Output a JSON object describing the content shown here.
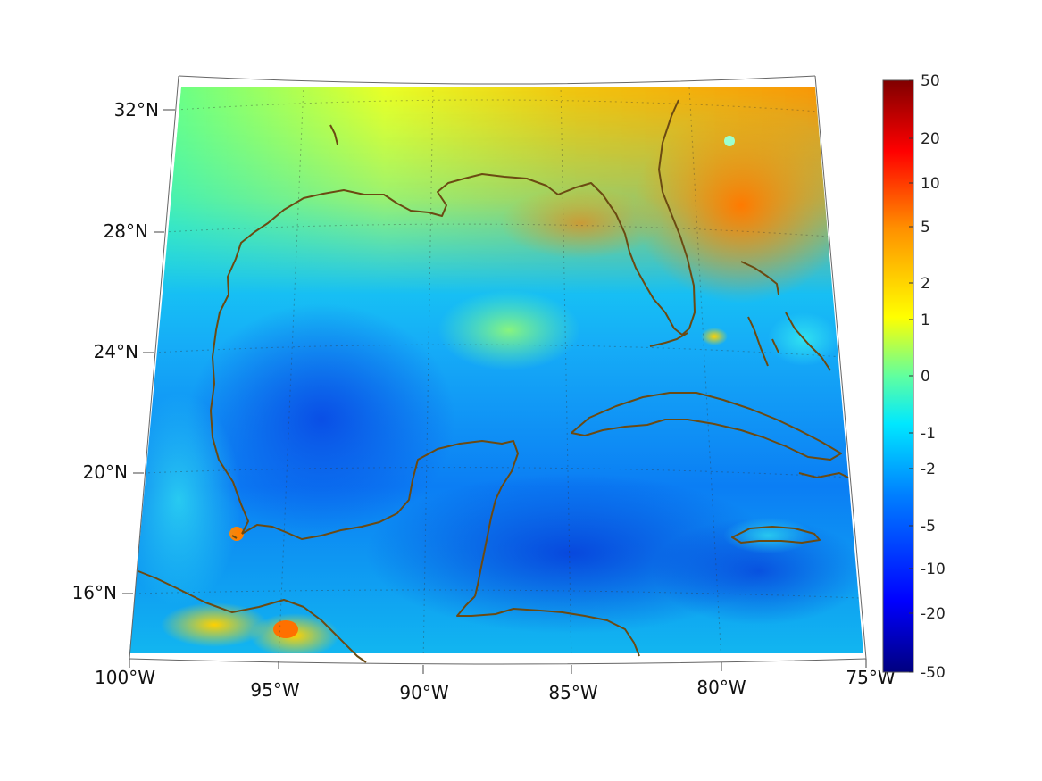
{
  "map": {
    "lon_labels": [
      "100°W",
      "95°W",
      "90°W",
      "85°W",
      "80°W",
      "75°W"
    ],
    "lat_labels": [
      "32°N",
      "28°N",
      "24°N",
      "20°N",
      "16°N"
    ],
    "coastline_color": "#6b4a12",
    "graticule": "dotted"
  },
  "colorbar": {
    "tick_labels": [
      "50",
      "20",
      "10",
      "5",
      "2",
      "1",
      "0",
      "-1",
      "-2",
      "-5",
      "-10",
      "-20",
      "-50"
    ],
    "colormap": "jet",
    "colors": [
      "#000080",
      "#0000ff",
      "#0080ff",
      "#00ffff",
      "#80ff80",
      "#ffff00",
      "#ff8000",
      "#ff0000",
      "#800000"
    ]
  }
}
